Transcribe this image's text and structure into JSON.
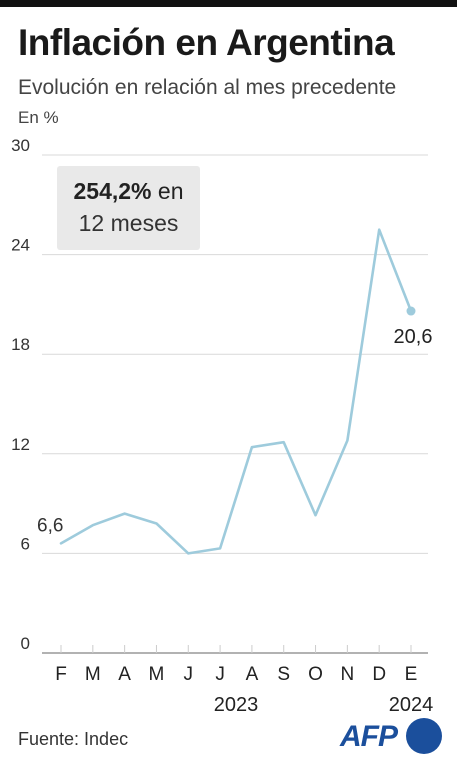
{
  "header": {
    "title": "Inflación en Argentina",
    "subtitle": "Evolución en relación al mes precedente",
    "unit": "En %"
  },
  "annotation": {
    "value": "254,2%",
    "text_after": " en",
    "line2": "12 meses"
  },
  "source": "Fuente: Indec",
  "logo": {
    "text": "AFP",
    "color": "#1b4f9c"
  },
  "chart_data": {
    "type": "line",
    "title": "Inflación en Argentina",
    "subtitle": "Evolución en relación al mes precedente",
    "ylabel": "En %",
    "ylim": [
      0,
      30
    ],
    "yticks": [
      0,
      6,
      12,
      18,
      24,
      30
    ],
    "grid": true,
    "categories": [
      "F",
      "M",
      "A",
      "M",
      "J",
      "J",
      "A",
      "S",
      "O",
      "N",
      "D",
      "E"
    ],
    "year_labels": [
      {
        "label": "2023",
        "category_index": 5.5
      },
      {
        "label": "2024",
        "category_index": 11
      }
    ],
    "series": [
      {
        "values": [
          6.6,
          7.7,
          8.4,
          7.8,
          6.0,
          6.3,
          12.4,
          12.7,
          8.3,
          12.8,
          25.5,
          20.6
        ],
        "color": "#9ecbdc"
      }
    ],
    "point_labels": [
      {
        "index": 0,
        "label": "6,6"
      },
      {
        "index": 11,
        "label": "20,6"
      }
    ],
    "colors": {
      "line": "#9ecbdc",
      "grid": "#d9d9d9",
      "axis": "#666666"
    }
  }
}
